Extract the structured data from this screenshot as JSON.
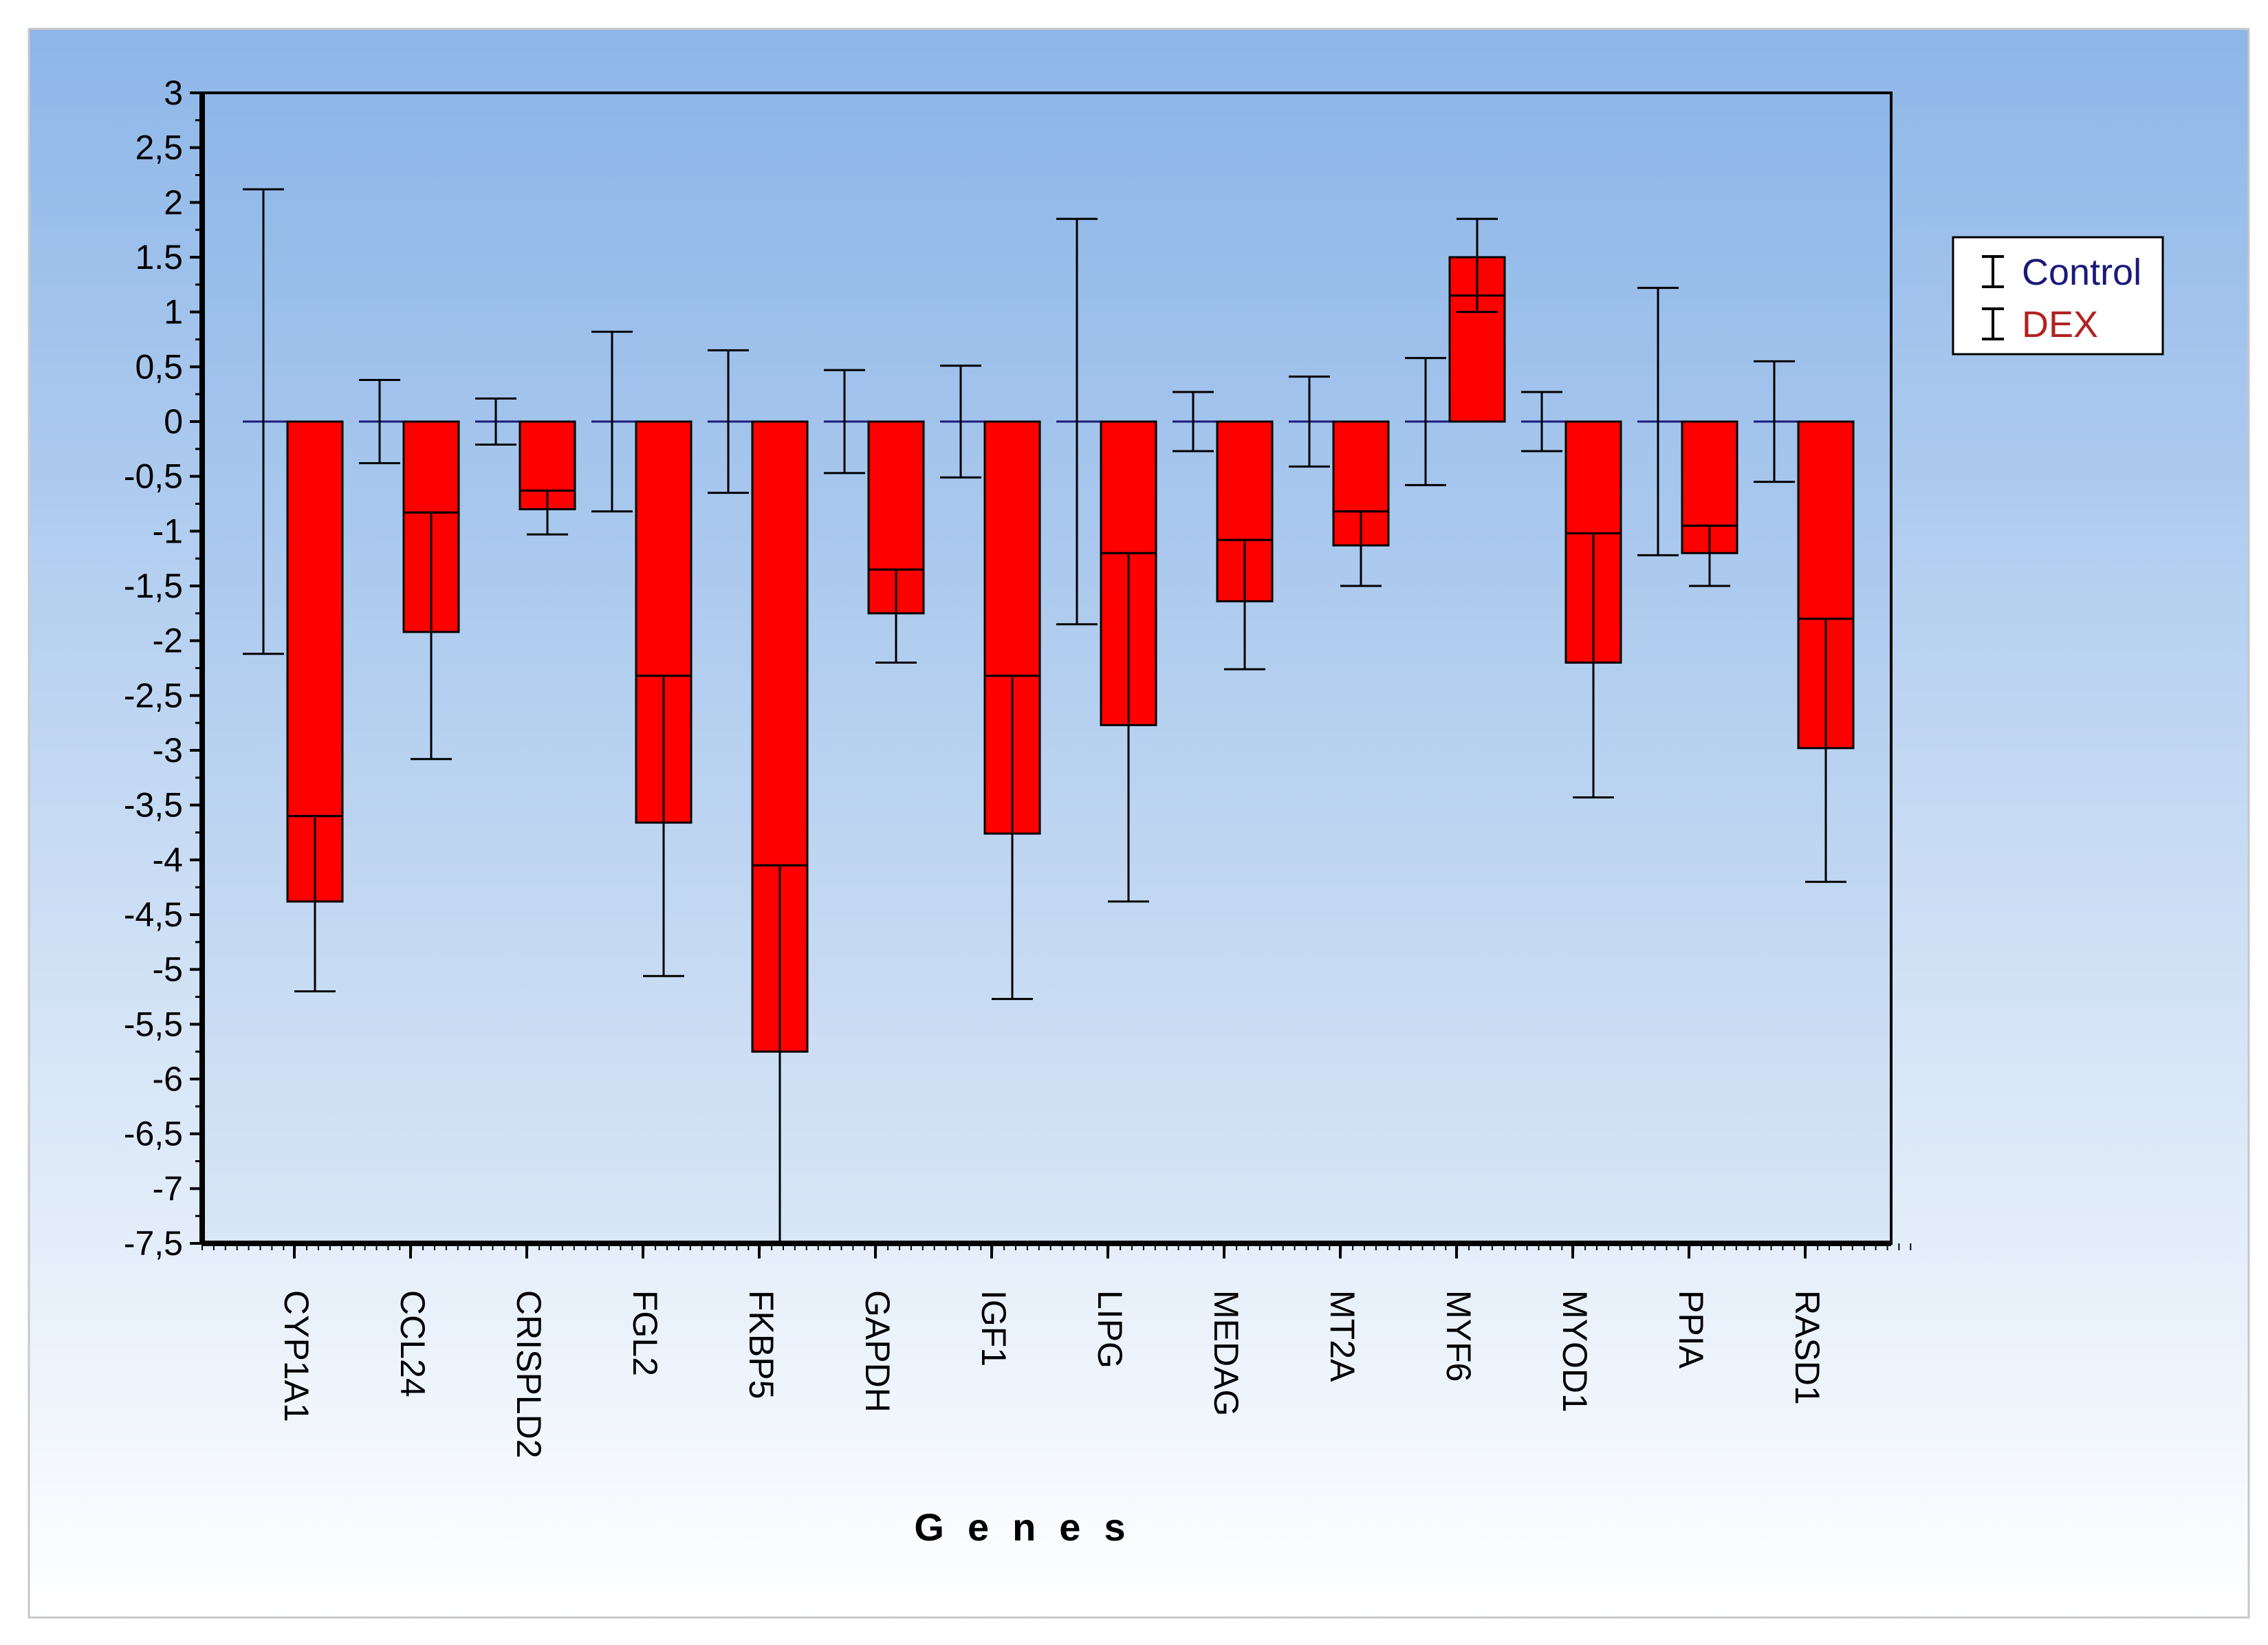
{
  "chart_data": {
    "type": "bar",
    "xlabel": "Genes",
    "ylabel": "",
    "ylim": [
      -7.5,
      3
    ],
    "yticks": [
      3,
      2.5,
      2,
      1.5,
      1,
      0.5,
      0,
      -0.5,
      -1,
      -1.5,
      -2,
      -2.5,
      -3,
      -3.5,
      -4,
      -4.5,
      -5,
      -5.5,
      -6,
      -6.5,
      -7,
      -7.5
    ],
    "ytick_labels": [
      "3",
      "2,5",
      "2",
      "1.5",
      "1",
      "0,5",
      "0",
      "-0,5",
      "-1",
      "-1,5",
      "-2",
      "-2,5",
      "-3",
      "-3,5",
      "-4",
      "-4,5",
      "-5",
      "-5,5",
      "-6",
      "-6,5",
      "-7",
      "-7,5"
    ],
    "categories": [
      "CYP1A1",
      "CCL24",
      "CRISPLD2",
      "FGL2",
      "FKBP5",
      "GAPDH",
      "IGF1",
      "LIPG",
      "MEDAG",
      "MT2A",
      "MYF6",
      "MYOD1",
      "PPIA",
      "RASD1"
    ],
    "series": [
      {
        "name": "Control",
        "color": "#1a1a7a",
        "values": [
          0,
          0,
          0,
          0,
          0,
          0,
          0,
          0,
          0,
          0,
          0,
          0,
          0,
          0
        ],
        "err_low": [
          -2.12,
          -0.38,
          -0.21,
          -0.82,
          -0.65,
          -0.47,
          -0.51,
          -1.85,
          -0.27,
          -0.41,
          -0.58,
          -0.27,
          -1.22,
          -0.55
        ],
        "err_high": [
          2.12,
          0.38,
          0.21,
          0.82,
          0.65,
          0.47,
          0.51,
          1.85,
          0.27,
          0.41,
          0.58,
          0.27,
          1.22,
          0.55
        ]
      },
      {
        "name": "DEX",
        "color": "#ff0000",
        "values": [
          -4.38,
          -1.92,
          -0.8,
          -3.66,
          -5.75,
          -1.75,
          -3.76,
          -2.77,
          -1.64,
          -1.13,
          1.5,
          -2.2,
          -1.2,
          -2.98
        ],
        "medians": [
          -3.6,
          -0.83,
          -0.63,
          -2.32,
          -4.05,
          -1.35,
          -2.32,
          -1.2,
          -1.08,
          -0.82,
          1.15,
          -1.02,
          -0.95,
          -1.8
        ],
        "err_low": [
          -5.2,
          -3.08,
          -1.03,
          -5.06,
          -7.5,
          -2.2,
          -5.27,
          -4.38,
          -2.26,
          -1.5,
          1.0,
          -3.43,
          -1.5,
          -4.2
        ],
        "err_high": [
          -3.6,
          -0.83,
          -0.63,
          -2.32,
          -4.05,
          -1.35,
          -2.32,
          -1.2,
          -1.08,
          -0.82,
          1.85,
          -1.02,
          -0.95,
          -1.8
        ]
      }
    ],
    "grid": false,
    "legend_position": "top-right",
    "colors": {
      "background_top": "#8db6e8",
      "background_bottom": "#ffffff",
      "axis": "#000000",
      "control": "#1a1a7a",
      "dex_fill": "#ff0000",
      "dex_outline": "#000000",
      "error_bar": "#000000"
    }
  }
}
